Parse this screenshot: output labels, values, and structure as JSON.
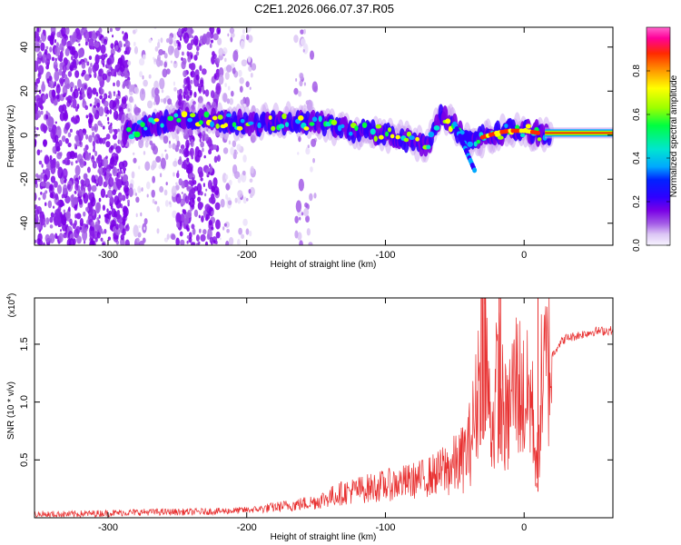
{
  "title": "C2E1.2026.066.07.37.R05",
  "chart_data": [
    {
      "type": "heatmap",
      "name": "spectrogram",
      "xlabel": "Height of straight line (km)",
      "ylabel": "Frequency (Hz)",
      "xlim": [
        -353,
        64
      ],
      "ylim": [
        -50,
        49
      ],
      "xticks": [
        -300,
        -200,
        -100,
        0
      ],
      "yticks": [
        -40,
        -20,
        0,
        20,
        40
      ],
      "xtick_labels": [
        "-300",
        "-200",
        "-100",
        "0"
      ],
      "ytick_labels": [
        "-40",
        "-20",
        "0",
        "20",
        "40"
      ],
      "ridge": {
        "x": [
          -285,
          -270,
          -255,
          -240,
          -225,
          -210,
          -195,
          -180,
          -165,
          -150,
          -135,
          -120,
          -105,
          -90,
          -80,
          -70,
          -60,
          -50,
          -40,
          -30,
          -20,
          -10,
          0,
          10,
          20,
          40,
          64
        ],
        "y": [
          2,
          4,
          6,
          8,
          7,
          6,
          5,
          6,
          6,
          6,
          4,
          2,
          1,
          -1,
          -3,
          -5,
          9,
          4,
          -3,
          -1,
          1,
          2,
          2,
          1,
          1,
          1,
          1
        ]
      },
      "colorbar": {
        "label": "Normalized spectral amplitude",
        "range": [
          0,
          1
        ],
        "ticks": [
          0.0,
          0.2,
          0.4,
          0.6,
          0.8
        ],
        "tick_labels": [
          "0.0",
          "0.2",
          "0.4",
          "0.6",
          "0.8"
        ],
        "colors": [
          "#f7f3ff",
          "#dcc6f5",
          "#a35ce6",
          "#7a00e6",
          "#2f00ff",
          "#0022ff",
          "#00a8ff",
          "#00e5d0",
          "#00ff40",
          "#9cff00",
          "#ffff00",
          "#ff9900",
          "#ff2a00",
          "#ff0099",
          "#ff66cc"
        ]
      }
    },
    {
      "type": "line",
      "name": "snr",
      "xlabel": "Height of straight line (km)",
      "ylabel": "SNR (10 * v/v)",
      "scale_label": "(x10",
      "scale_exp": "4",
      "scale_close": ")",
      "xlim": [
        -353,
        64
      ],
      "ylim": [
        0,
        1.9
      ],
      "xticks": [
        -300,
        -200,
        -100,
        0
      ],
      "yticks": [
        0.5,
        1.0,
        1.5
      ],
      "xtick_labels": [
        "-300",
        "-200",
        "-100",
        "0"
      ],
      "ytick_labels": [
        "0.5",
        "1.0",
        "1.5"
      ],
      "color": "#e83030",
      "x": [
        -353,
        -330,
        -300,
        -270,
        -240,
        -210,
        -195,
        -180,
        -160,
        -150,
        -140,
        -130,
        -120,
        -110,
        -100,
        -90,
        -80,
        -70,
        -60,
        -50,
        -45,
        -40,
        -35,
        -32,
        -30,
        -28,
        -25,
        -22,
        -20,
        -18,
        -15,
        -12,
        -10,
        -8,
        -5,
        -2,
        0,
        5,
        8,
        10,
        12,
        15,
        20,
        25,
        30,
        40,
        50,
        64
      ],
      "y": [
        0.03,
        0.03,
        0.04,
        0.05,
        0.05,
        0.06,
        0.07,
        0.09,
        0.12,
        0.14,
        0.18,
        0.22,
        0.24,
        0.26,
        0.28,
        0.3,
        0.32,
        0.35,
        0.4,
        0.45,
        0.5,
        0.6,
        0.9,
        1.3,
        1.7,
        1.5,
        0.9,
        0.8,
        1.1,
        1.2,
        0.9,
        0.8,
        1.0,
        1.1,
        1.2,
        1.1,
        1.0,
        1.05,
        0.6,
        0.45,
        1.1,
        1.25,
        1.4,
        1.5,
        1.55,
        1.58,
        1.61,
        1.62
      ]
    }
  ]
}
